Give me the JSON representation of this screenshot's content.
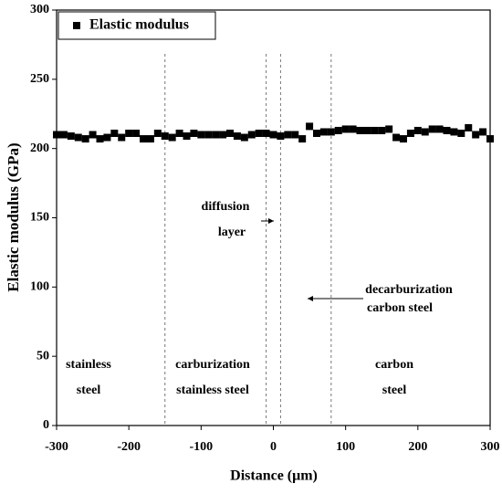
{
  "chart_data": {
    "type": "scatter",
    "xlabel": "Distance (μm)",
    "ylabel": "Elastic modulus (GPa)",
    "xlim": [
      -300,
      300
    ],
    "xticks": [
      -300,
      -200,
      -100,
      0,
      100,
      200,
      300
    ],
    "ylim": [
      0,
      300
    ],
    "yticks": [
      0,
      50,
      100,
      150,
      200,
      250,
      300
    ],
    "legend": "top-left",
    "vlines": [
      -150,
      -10,
      10,
      80
    ],
    "annotations": [
      [
        "stainless",
        "steel"
      ],
      [
        "carburization",
        "stainless steel"
      ],
      [
        "carbon",
        "steel"
      ],
      [
        "diffusion",
        "layer"
      ],
      [
        "decarburization",
        "carbon steel"
      ]
    ],
    "series": [
      {
        "name": "Elastic modulus",
        "color": "#000000",
        "x": [
          -300,
          -290,
          -280,
          -270,
          -260,
          -250,
          -240,
          -230,
          -220,
          -210,
          -200,
          -190,
          -180,
          -170,
          -160,
          -150,
          -140,
          -130,
          -120,
          -110,
          -100,
          -90,
          -80,
          -70,
          -60,
          -50,
          -40,
          -30,
          -20,
          -10,
          0,
          10,
          20,
          30,
          40,
          50,
          60,
          70,
          80,
          90,
          100,
          110,
          120,
          130,
          140,
          150,
          160,
          170,
          180,
          190,
          200,
          210,
          220,
          230,
          240,
          250,
          260,
          270,
          280,
          290,
          300
        ],
        "values": [
          210,
          210,
          209,
          208,
          207,
          210,
          207,
          208,
          211,
          208,
          211,
          211,
          207,
          207,
          211,
          209,
          208,
          211,
          209,
          211,
          210,
          210,
          210,
          210,
          211,
          209,
          208,
          210,
          211,
          211,
          210,
          209,
          210,
          210,
          207,
          216,
          211,
          212,
          212,
          213,
          214,
          214,
          213,
          213,
          213,
          213,
          214,
          208,
          207,
          211,
          213,
          212,
          214,
          214,
          213,
          212,
          211,
          215,
          210,
          212,
          207
        ]
      }
    ]
  }
}
